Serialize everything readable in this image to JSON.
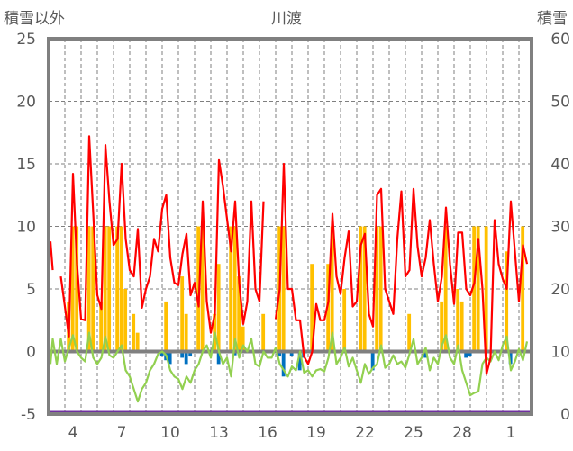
{
  "chart_data": {
    "type": "line",
    "title": "川渡",
    "ylabel_left": "積雪以外",
    "ylabel_right": "積雪",
    "ylim_left": [
      -5,
      25
    ],
    "yticks_left": [
      -5,
      0,
      5,
      10,
      15,
      20,
      25
    ],
    "ylim_right": [
      0,
      60
    ],
    "yticks_right": [
      0,
      10,
      20,
      30,
      40,
      50,
      60
    ],
    "x_day_range": [
      3.1,
      32.6
    ],
    "x_tick_labels": [
      {
        "day": 4,
        "label": "4"
      },
      {
        "day": 7,
        "label": "7"
      },
      {
        "day": 10,
        "label": "10"
      },
      {
        "day": 13,
        "label": "13"
      },
      {
        "day": 16,
        "label": "16"
      },
      {
        "day": 19,
        "label": "19"
      },
      {
        "day": 22,
        "label": "22"
      },
      {
        "day": 25,
        "label": "25"
      },
      {
        "day": 28,
        "label": "28"
      },
      {
        "day": 31,
        "label": "1"
      }
    ],
    "grid": true,
    "sample_start_day": 3,
    "sample_step_days": 0.25,
    "series": [
      {
        "name": "red",
        "axis": "left",
        "kind": "line",
        "color": "#ff0000",
        "values": [
          8.8,
          6.5,
          null,
          6.0,
          3.6,
          1.2,
          14.2,
          7,
          2.6,
          2.5,
          17.2,
          11,
          4.5,
          3.4,
          16.5,
          12,
          8.5,
          9,
          15,
          9,
          6.5,
          6,
          9.8,
          3.5,
          5,
          6,
          9,
          8,
          11.4,
          12.5,
          7.5,
          5.5,
          5.3,
          7.8,
          9.4,
          4.5,
          5.5,
          3.6,
          12,
          4,
          1.5,
          3,
          15.3,
          13.2,
          10.6,
          8,
          12,
          5.5,
          2.2,
          4,
          12,
          5,
          4,
          12,
          null,
          null,
          2.6,
          5,
          15,
          5,
          5,
          2.5,
          2.5,
          -0.4,
          -1,
          0,
          3.8,
          2.5,
          2.5,
          4,
          11,
          6,
          4.6,
          7.5,
          9.6,
          3.6,
          4,
          8.5,
          9.4,
          3,
          2,
          12.5,
          13,
          5,
          4,
          3,
          9,
          12.8,
          6,
          6.5,
          13,
          8.4,
          6,
          7.5,
          10.5,
          7,
          4,
          6,
          11.5,
          7,
          3.8,
          9.5,
          9.5,
          5,
          4.5,
          5.5,
          9,
          5,
          -1.8,
          -0.5,
          10.5,
          7,
          5.8,
          5,
          12,
          8,
          4,
          8.5,
          7
        ]
      },
      {
        "name": "green",
        "axis": "left",
        "kind": "line",
        "color": "#92d050",
        "values": [
          -1,
          1,
          -1,
          1,
          -0.8,
          0.3,
          1.3,
          0,
          -0.5,
          -0.8,
          1.5,
          -0.5,
          -1,
          -0.5,
          1.2,
          -0.3,
          -0.5,
          0,
          0.5,
          -1.5,
          -2,
          -3,
          -4,
          -3,
          -2.5,
          -1.5,
          -1,
          -0.2,
          0,
          -0.3,
          -1.5,
          -2,
          -2.2,
          -3,
          -2,
          -2.5,
          -1.5,
          -1,
          0,
          0.5,
          -0.5,
          1.5,
          0,
          -1,
          -0.5,
          -2,
          1,
          -0.5,
          0.5,
          0,
          1,
          -1,
          -1.2,
          0,
          -0.5,
          -0.5,
          0.3,
          -1,
          -1.5,
          -2,
          -1.2,
          -1.5,
          0,
          -1.7,
          -1.5,
          -2,
          -1.5,
          -1.4,
          -1.6,
          -0.5,
          1.5,
          -1,
          -0.5,
          0.3,
          -1.2,
          -0.5,
          -1.5,
          -2.5,
          -1,
          -1.8,
          -1.3,
          -1,
          0.5,
          -1.3,
          -1,
          -0.3,
          -1,
          -0.8,
          -1.3,
          -0.2,
          1,
          -1,
          -0.5,
          0.3,
          -1.5,
          -0.5,
          -1,
          0.5,
          1.3,
          -0.5,
          -1,
          0.5,
          -1.5,
          -2.5,
          -3.5,
          -3.3,
          -3.2,
          -1,
          -0.5,
          -0.8,
          0,
          -0.7,
          0.5,
          1.2,
          -1.5,
          -0.8,
          0.2,
          -0.7,
          0.8
        ]
      },
      {
        "name": "orange",
        "axis": "left",
        "kind": "bar",
        "color": "#ffc000",
        "values": [
          0,
          0,
          0,
          0,
          0,
          4,
          10,
          10,
          0,
          0,
          10,
          10,
          0,
          4,
          10,
          10,
          0,
          10,
          10,
          5,
          0,
          3,
          1.5,
          0,
          0,
          0,
          0,
          0,
          0,
          4,
          0,
          0,
          0,
          6,
          3,
          0,
          0,
          10,
          10,
          0,
          0,
          3,
          7,
          0,
          0,
          10,
          10,
          6,
          2,
          0,
          0,
          0,
          0,
          3,
          0,
          0,
          0,
          10,
          10,
          0,
          0,
          0,
          0,
          0,
          0,
          7,
          0,
          0,
          0,
          7,
          10,
          0,
          0,
          5,
          0,
          0,
          0,
          10,
          10,
          0,
          0,
          10,
          10,
          0,
          0,
          0,
          0,
          0,
          0,
          3,
          0,
          0,
          0,
          0,
          0,
          0,
          0,
          4,
          10,
          0,
          0,
          5,
          4,
          0,
          0,
          10,
          10,
          0,
          10,
          0,
          0,
          0,
          0,
          8,
          0,
          0,
          0,
          10,
          0
        ]
      },
      {
        "name": "blue",
        "axis": "left",
        "kind": "bar",
        "color": "#0070c0",
        "values": [
          0,
          0,
          0,
          0,
          0,
          0,
          0,
          0,
          0,
          0,
          0,
          0,
          0,
          0,
          0,
          0,
          0,
          0,
          0,
          0,
          0,
          0,
          0,
          0,
          0,
          0,
          0,
          0,
          -0.4,
          -0.7,
          -1,
          0,
          0,
          -0.5,
          -1,
          -0.4,
          0,
          0,
          0,
          0,
          0,
          0,
          -1,
          0,
          0,
          0,
          -0.3,
          0,
          0,
          0,
          0,
          0,
          0,
          0,
          0,
          0,
          0,
          -0.4,
          -2,
          0,
          -0.4,
          0,
          -1.5,
          -0.5,
          0,
          0,
          0,
          0,
          0,
          0,
          0,
          0,
          0,
          0,
          0,
          0,
          0,
          0,
          0,
          0,
          -1.5,
          0,
          0,
          0,
          0,
          0,
          0,
          0,
          0,
          0,
          0,
          0,
          0,
          -0.5,
          0,
          0,
          0,
          0,
          0,
          0,
          0,
          0,
          0,
          -0.5,
          -0.4,
          0,
          0,
          0,
          0,
          0,
          0,
          0,
          0,
          0,
          -1,
          0,
          0,
          0,
          0
        ]
      },
      {
        "name": "purple",
        "axis": "right",
        "kind": "line",
        "color": "#7030a0",
        "values_constant": 0
      }
    ]
  }
}
